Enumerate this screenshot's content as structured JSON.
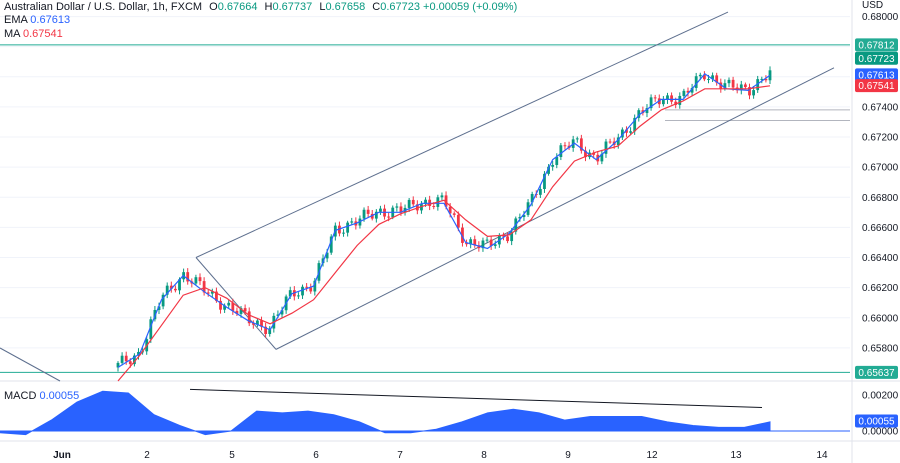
{
  "header": {
    "symbol_title": "Australian Dollar / U.S. Dollar, 1h, FXCM",
    "ohlc": [
      {
        "k": "O",
        "v": "0.67664"
      },
      {
        "k": "H",
        "v": "0.67737"
      },
      {
        "k": "L",
        "v": "0.67658"
      },
      {
        "k": "C",
        "v": "0.67723"
      }
    ],
    "change": "+0.00059 (+0.09%)"
  },
  "indicators": {
    "ema": {
      "label": "EMA",
      "value": "0.67613",
      "color": "#2962ff"
    },
    "ma": {
      "label": "MA",
      "value": "0.67541",
      "color": "#f23645"
    },
    "macd": {
      "label": "MACD",
      "value": "0.00055",
      "color": "#2962ff"
    }
  },
  "chart_data": [
    {
      "type": "candlestick",
      "title": "Australian Dollar / U.S. Dollar, 1h, FXCM",
      "currency_label": "USD",
      "y_ticks": [
        "0.68000",
        "0.67800",
        "0.67600",
        "0.67400",
        "0.67200",
        "0.67000",
        "0.66800",
        "0.66600",
        "0.66400",
        "0.66200",
        "0.66000",
        "0.65800"
      ],
      "x_ticks": [
        "Jun",
        "2",
        "5",
        "6",
        "7",
        "8",
        "9",
        "12",
        "13",
        "14"
      ],
      "ylim": [
        0.6558,
        0.6811
      ],
      "horizontal_levels": [
        0.67812,
        0.65637
      ],
      "price_labels": [
        {
          "text": "0.67812",
          "value": 0.67812,
          "color": "#22ab94"
        },
        {
          "text": "0.67723",
          "value": 0.67723,
          "color": "#089981"
        },
        {
          "text": "0.67613",
          "value": 0.67613,
          "color": "#2962ff"
        },
        {
          "text": "0.67541",
          "value": 0.67541,
          "color": "#f23645"
        },
        {
          "text": "0.65637",
          "value": 0.65637,
          "color": "#22ab94"
        }
      ],
      "series": [
        {
          "name": "EMA",
          "color": "#2962ff",
          "values": [
            0.6567,
            0.6576,
            0.6612,
            0.6628,
            0.6617,
            0.6607,
            0.6598,
            0.6592,
            0.6616,
            0.6621,
            0.6658,
            0.6663,
            0.667,
            0.667,
            0.6676,
            0.6676,
            0.665,
            0.6646,
            0.6656,
            0.6675,
            0.6705,
            0.6716,
            0.6705,
            0.6718,
            0.6735,
            0.6745,
            0.6745,
            0.6762,
            0.6752,
            0.6751,
            0.6761
          ]
        },
        {
          "name": "MA",
          "color": "#f23645",
          "values": [
            0.6558,
            0.6575,
            0.6595,
            0.6615,
            0.662,
            0.6613,
            0.6602,
            0.6596,
            0.6603,
            0.6612,
            0.663,
            0.6648,
            0.6662,
            0.6669,
            0.6674,
            0.6678,
            0.6665,
            0.6654,
            0.6655,
            0.6665,
            0.6687,
            0.6704,
            0.671,
            0.6714,
            0.6727,
            0.6738,
            0.6744,
            0.6752,
            0.6752,
            0.6752,
            0.6754
          ]
        }
      ],
      "trend_channel": {
        "upper": {
          "start": [
            0.6632,
            0.664
          ],
          "end": [
            0.6776,
            0.6803
          ]
        },
        "lower": {
          "start": [
            0.6569,
            0.6579
          ],
          "end": [
            0.6772,
            0.6766
          ]
        }
      }
    },
    {
      "type": "area",
      "title": "MACD",
      "value_label": "0.00055",
      "y_ticks": [
        "0.00200",
        "0.00000"
      ],
      "ylim": [
        -0.0005,
        0.0026
      ],
      "values": [
        -0.0001,
        -0.0002,
        0.0006,
        0.0016,
        0.0022,
        0.0021,
        0.0009,
        0.0003,
        -0.0002,
        0.0,
        0.0011,
        0.001,
        0.0011,
        0.0009,
        0.0005,
        -0.0001,
        -0.0001,
        0.0001,
        0.0005,
        0.001,
        0.0012,
        0.001,
        0.0006,
        0.0008,
        0.0008,
        0.0008,
        0.0005,
        0.0003,
        0.0002,
        0.0002,
        0.0005
      ],
      "divergence_line": {
        "start": 0.0023,
        "end": 0.0013
      }
    }
  ]
}
